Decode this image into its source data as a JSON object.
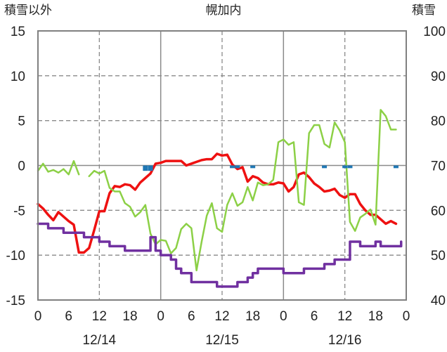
{
  "chart_data": {
    "type": "line",
    "title": "幌加内",
    "left_axis_label": "積雪以外",
    "right_axis_label": "積雪",
    "y_left": {
      "min": -15,
      "max": 15,
      "ticks": [
        -15,
        -10,
        -5,
        0,
        5,
        10,
        15
      ],
      "tick_labels": [
        "-15",
        "-10",
        "-5",
        "0",
        "5",
        "10",
        "15"
      ]
    },
    "y_right": {
      "min": 40,
      "max": 100,
      "ticks": [
        40,
        50,
        60,
        70,
        80,
        90,
        100
      ],
      "tick_labels": [
        "40",
        "50",
        "60",
        "70",
        "80",
        "90",
        "100"
      ]
    },
    "x": {
      "min": 0,
      "max": 72,
      "ticks": [
        0,
        6,
        12,
        18,
        24,
        30,
        36,
        42,
        48,
        54,
        60,
        66,
        72
      ],
      "tick_labels": [
        "0",
        "6",
        "12",
        "18",
        "0",
        "6",
        "12",
        "18",
        "0",
        "6",
        "12",
        "18",
        "0"
      ]
    },
    "day_labels": [
      {
        "x": 12,
        "label": "12/14"
      },
      {
        "x": 36,
        "label": "12/15"
      },
      {
        "x": 60,
        "label": "12/16"
      }
    ],
    "grid": {
      "solid_x": [
        24,
        48
      ],
      "dashed_x": [
        12,
        36,
        60
      ],
      "dashed_y": [
        -10,
        -5,
        5,
        10
      ],
      "solid_y": [
        0
      ]
    },
    "series": [
      {
        "color": "#ee1111",
        "axis": "left",
        "width": 3.5,
        "style": "line",
        "points": [
          [
            0,
            -4.3
          ],
          [
            1,
            -4.8
          ],
          [
            2,
            -5.5
          ],
          [
            3,
            -6.1
          ],
          [
            4,
            -5.2
          ],
          [
            5,
            -5.7
          ],
          [
            6,
            -6.2
          ],
          [
            7,
            -6.6
          ],
          [
            8,
            -9.7
          ],
          [
            9,
            -9.7
          ],
          [
            10,
            -9.2
          ],
          [
            11,
            -7.2
          ],
          [
            12,
            -5.1
          ],
          [
            13,
            -5.1
          ],
          [
            14,
            -3.1
          ],
          [
            15,
            -2.3
          ],
          [
            16,
            -2.4
          ],
          [
            17,
            -2.1
          ],
          [
            18,
            -2.2
          ],
          [
            19,
            -2.7
          ],
          [
            20,
            -1.9
          ],
          [
            21,
            -1.4
          ],
          [
            22,
            -0.9
          ],
          [
            23,
            0.2
          ],
          [
            24,
            0.3
          ],
          [
            25,
            0.5
          ],
          [
            26,
            0.5
          ],
          [
            27,
            0.5
          ],
          [
            28,
            0.5
          ],
          [
            29,
            0.0
          ],
          [
            30,
            0.2
          ],
          [
            31,
            0.4
          ],
          [
            32,
            0.6
          ],
          [
            33,
            0.7
          ],
          [
            34,
            0.7
          ],
          [
            35,
            1.3
          ],
          [
            36,
            1.1
          ],
          [
            37,
            1.2
          ],
          [
            38,
            0.1
          ],
          [
            39,
            -0.4
          ],
          [
            40,
            -0.2
          ],
          [
            41,
            -1.8
          ],
          [
            42,
            -1.2
          ],
          [
            43,
            -1.4
          ],
          [
            44,
            -1.9
          ],
          [
            45,
            -2.1
          ],
          [
            46,
            -2.1
          ],
          [
            47,
            -1.9
          ],
          [
            48,
            -2.0
          ],
          [
            49,
            -2.9
          ],
          [
            50,
            -2.4
          ],
          [
            51,
            -1.0
          ],
          [
            52,
            -0.8
          ],
          [
            53,
            -1.3
          ],
          [
            54,
            -2.0
          ],
          [
            55,
            -2.4
          ],
          [
            56,
            -2.9
          ],
          [
            57,
            -2.8
          ],
          [
            58,
            -2.6
          ],
          [
            59,
            -3.3
          ],
          [
            60,
            -3.6
          ],
          [
            61,
            -3.2
          ],
          [
            62,
            -3.2
          ],
          [
            63,
            -4.3
          ],
          [
            64,
            -5.0
          ],
          [
            65,
            -5.5
          ],
          [
            66,
            -5.5
          ],
          [
            67,
            -6.0
          ],
          [
            68,
            -6.5
          ],
          [
            69,
            -6.2
          ],
          [
            70,
            -6.5
          ]
        ]
      },
      {
        "color": "#8cd046",
        "axis": "left",
        "width": 2.5,
        "style": "line",
        "points": [
          [
            0,
            -0.6
          ],
          [
            1,
            0.2
          ],
          [
            2,
            -0.7
          ],
          [
            3,
            -0.5
          ],
          [
            4,
            -0.8
          ],
          [
            5,
            -0.4
          ],
          [
            6,
            -1.0
          ],
          [
            7,
            0.5
          ],
          [
            8,
            -1.0
          ],
          null,
          [
            10,
            -1.2
          ],
          [
            11,
            -0.6
          ],
          [
            12,
            -0.9
          ],
          [
            13,
            -0.6
          ],
          [
            14,
            -2.5
          ],
          [
            15,
            -2.9
          ],
          [
            16,
            -2.9
          ],
          [
            17,
            -4.2
          ],
          [
            18,
            -4.6
          ],
          [
            19,
            -5.7
          ],
          [
            20,
            -5.2
          ],
          [
            21,
            -4.4
          ],
          [
            22,
            -7.6
          ],
          [
            23,
            -8.8
          ],
          [
            24,
            -8.3
          ],
          [
            25,
            -8.4
          ],
          [
            26,
            -9.8
          ],
          [
            27,
            -9.2
          ],
          [
            28,
            -7.1
          ],
          [
            29,
            -6.5
          ],
          [
            30,
            -7.0
          ],
          [
            31,
            -11.7
          ],
          [
            32,
            -8.5
          ],
          [
            33,
            -5.6
          ],
          [
            34,
            -4.2
          ],
          [
            35,
            -7.0
          ],
          [
            36,
            -7.4
          ],
          [
            37,
            -4.4
          ],
          [
            38,
            -3.1
          ],
          [
            39,
            -4.5
          ],
          [
            40,
            -4.1
          ],
          [
            41,
            -2.4
          ],
          [
            42,
            -3.9
          ],
          [
            43,
            -1.9
          ],
          [
            44,
            -2.2
          ],
          [
            45,
            -2.1
          ],
          [
            46,
            -1.6
          ],
          [
            47,
            2.6
          ],
          [
            48,
            2.9
          ],
          [
            49,
            2.3
          ],
          [
            50,
            2.6
          ],
          [
            51,
            -4.1
          ],
          [
            52,
            -4.4
          ],
          [
            53,
            3.6
          ],
          [
            54,
            4.5
          ],
          [
            55,
            4.5
          ],
          [
            56,
            2.4
          ],
          [
            57,
            2.0
          ],
          [
            58,
            4.8
          ],
          [
            59,
            3.9
          ],
          [
            60,
            2.6
          ],
          [
            61,
            -6.3
          ],
          [
            62,
            -7.3
          ],
          [
            63,
            -5.8
          ],
          [
            64,
            -5.4
          ],
          [
            65,
            -4.9
          ],
          [
            66,
            -6.6
          ],
          [
            67,
            6.2
          ],
          [
            68,
            5.5
          ],
          [
            69,
            4.0
          ],
          [
            70,
            4.0
          ]
        ]
      },
      {
        "color": "#7030a0",
        "axis": "right",
        "width": 3.5,
        "style": "step",
        "points": [
          [
            0,
            57
          ],
          [
            1,
            57
          ],
          [
            2,
            56
          ],
          [
            3,
            56
          ],
          [
            4,
            56
          ],
          [
            5,
            55
          ],
          [
            6,
            55
          ],
          [
            7,
            55
          ],
          [
            8,
            55
          ],
          [
            9,
            54
          ],
          [
            10,
            54
          ],
          [
            11,
            54
          ],
          [
            12,
            53
          ],
          [
            13,
            53
          ],
          [
            14,
            52
          ],
          [
            15,
            52
          ],
          [
            16,
            52
          ],
          [
            17,
            51
          ],
          [
            18,
            51
          ],
          [
            19,
            51
          ],
          [
            20,
            51
          ],
          [
            21,
            51
          ],
          [
            22,
            54
          ],
          [
            23,
            51
          ],
          [
            24,
            50
          ],
          [
            25,
            50
          ],
          [
            26,
            49
          ],
          [
            27,
            47
          ],
          [
            28,
            46
          ],
          [
            29,
            46
          ],
          [
            30,
            44
          ],
          [
            31,
            44
          ],
          [
            32,
            44
          ],
          [
            33,
            44
          ],
          [
            34,
            44
          ],
          [
            35,
            43
          ],
          [
            36,
            43
          ],
          [
            37,
            43
          ],
          [
            38,
            43
          ],
          [
            39,
            44
          ],
          [
            40,
            44
          ],
          [
            41,
            45
          ],
          [
            42,
            46
          ],
          [
            43,
            47
          ],
          [
            44,
            47
          ],
          [
            45,
            47
          ],
          [
            46,
            47
          ],
          [
            47,
            47
          ],
          [
            48,
            46
          ],
          [
            49,
            46
          ],
          [
            50,
            46
          ],
          [
            51,
            46
          ],
          [
            52,
            47
          ],
          [
            53,
            47
          ],
          [
            54,
            47
          ],
          [
            55,
            47
          ],
          [
            56,
            48
          ],
          [
            57,
            48
          ],
          [
            58,
            49
          ],
          [
            59,
            49
          ],
          [
            60,
            49
          ],
          [
            61,
            53
          ],
          [
            62,
            53
          ],
          [
            63,
            52
          ],
          [
            64,
            52
          ],
          [
            65,
            52
          ],
          [
            66,
            53
          ],
          [
            67,
            52
          ],
          [
            68,
            52
          ],
          [
            69,
            52
          ],
          [
            70,
            52
          ],
          [
            71,
            53
          ]
        ]
      },
      {
        "color": "#1f77b4",
        "axis": "left",
        "width": 7,
        "style": "bars",
        "points": [
          [
            21,
            -0.6
          ],
          [
            22,
            -0.6
          ],
          [
            38,
            -0.3
          ],
          [
            39,
            -0.3
          ],
          [
            42,
            -0.3
          ],
          [
            56,
            -0.3
          ],
          [
            60,
            -0.3
          ],
          [
            61,
            -0.3
          ],
          [
            70,
            -0.3
          ]
        ]
      }
    ]
  }
}
